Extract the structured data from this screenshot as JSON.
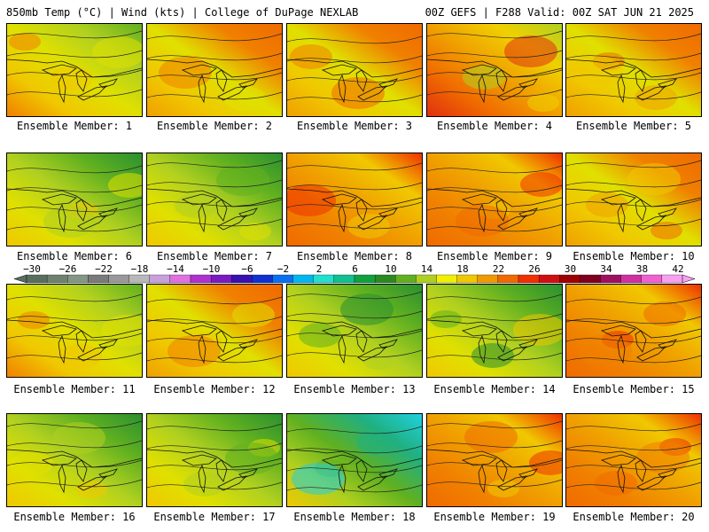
{
  "header": {
    "left": "850mb Temp (°C) | Wind (kts) | College of DuPage NEXLAB",
    "right": "00Z GEFS | F288 Valid: 00Z SAT JUN 21 2025"
  },
  "panels": [
    {
      "label": "Ensemble Member: 1",
      "tone": "warm-west"
    },
    {
      "label": "Ensemble Member: 2",
      "tone": "warm"
    },
    {
      "label": "Ensemble Member: 3",
      "tone": "warm"
    },
    {
      "label": "Ensemble Member: 4",
      "tone": "hot-south"
    },
    {
      "label": "Ensemble Member: 5",
      "tone": "warm"
    },
    {
      "label": "Ensemble Member: 6",
      "tone": "cool-north"
    },
    {
      "label": "Ensemble Member: 7",
      "tone": "cool-north"
    },
    {
      "label": "Ensemble Member: 8",
      "tone": "hot"
    },
    {
      "label": "Ensemble Member: 9",
      "tone": "hot"
    },
    {
      "label": "Ensemble Member: 10",
      "tone": "warm"
    },
    {
      "label": "Ensemble Member: 11",
      "tone": "warm-west"
    },
    {
      "label": "Ensemble Member: 12",
      "tone": "warm"
    },
    {
      "label": "Ensemble Member: 13",
      "tone": "cool-north"
    },
    {
      "label": "Ensemble Member: 14",
      "tone": "cool-north"
    },
    {
      "label": "Ensemble Member: 15",
      "tone": "hot"
    },
    {
      "label": "Ensemble Member: 16",
      "tone": "cool-north"
    },
    {
      "label": "Ensemble Member: 17",
      "tone": "cool-north"
    },
    {
      "label": "Ensemble Member: 18",
      "tone": "cold-north"
    },
    {
      "label": "Ensemble Member: 19",
      "tone": "hot"
    },
    {
      "label": "Ensemble Member: 20",
      "tone": "hot"
    }
  ],
  "colorbar": {
    "labels": [
      "−30",
      "−26",
      "−22",
      "−18",
      "−14",
      "−10",
      "−6",
      "−2",
      "2",
      "6",
      "10",
      "14",
      "18",
      "22",
      "26",
      "30",
      "34",
      "38",
      "42"
    ],
    "colors": [
      "#5a6e5e",
      "#6f8270",
      "#849684",
      "#7a7a7a",
      "#999999",
      "#b8b8b8",
      "#c9a0dc",
      "#e070e0",
      "#b030d0",
      "#7a1ac0",
      "#3a10b0",
      "#1030d0",
      "#0a70f0",
      "#00b8f0",
      "#20e0d0",
      "#10c090",
      "#10a040",
      "#2a8a20",
      "#60b020",
      "#b0d020",
      "#f0f000",
      "#f0c800",
      "#f09a00",
      "#f06a00",
      "#f03000",
      "#d01010",
      "#a00000",
      "#800020",
      "#a01060",
      "#d030a0",
      "#f060d0",
      "#f8a0f0"
    ]
  }
}
